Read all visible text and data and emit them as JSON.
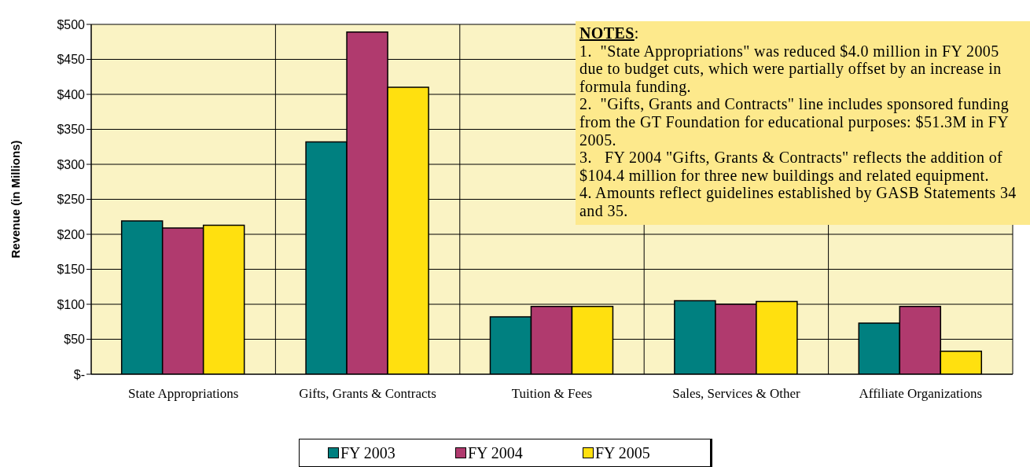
{
  "chart_data": {
    "type": "bar",
    "ylabel": "Revenue (in Millions)",
    "categories": [
      "State Appropriations",
      "Gifts, Grants & Contracts",
      "Tuition & Fees",
      "Sales, Services & Other",
      "Affiliate Organizations"
    ],
    "series": [
      {
        "name": "FY 2003",
        "color": "#008080",
        "values": [
          219,
          332,
          82,
          105,
          73
        ]
      },
      {
        "name": "FY 2004",
        "color": "#b03a6e",
        "values": [
          209,
          489,
          97,
          100,
          97
        ]
      },
      {
        "name": "FY 2005",
        "color": "#ffe00f",
        "values": [
          213,
          410,
          97,
          104,
          33
        ]
      }
    ],
    "ylim": [
      0,
      500
    ],
    "yticks": [
      {
        "value": 0,
        "label": "$-"
      },
      {
        "value": 50,
        "label": "$50"
      },
      {
        "value": 100,
        "label": "$100"
      },
      {
        "value": 150,
        "label": "$150"
      },
      {
        "value": 200,
        "label": "$200"
      },
      {
        "value": 250,
        "label": "$250"
      },
      {
        "value": 300,
        "label": "$300"
      },
      {
        "value": 350,
        "label": "$350"
      },
      {
        "value": 400,
        "label": "$400"
      },
      {
        "value": 450,
        "label": "$450"
      },
      {
        "value": 500,
        "label": "$500"
      }
    ],
    "grid": true,
    "legend": "bottom",
    "annotations": [
      "NOTES:",
      "1.  \"State Appropriations\" was reduced $4.0 million in FY 2005 due to budget cuts, which were partially offset by an increase in formula funding.",
      "2.  \"Gifts, Grants and Contracts\" line includes sponsored funding from the GT Foundation for educational purposes: $51.3M in FY 2005.",
      "3.   FY 2004 \"Gifts, Grants & Contracts\" reflects the addition of $104.4 million for three new buildings and related equipment.",
      "4. Amounts reflect guidelines established by GASB Statements 34 and 35."
    ]
  }
}
